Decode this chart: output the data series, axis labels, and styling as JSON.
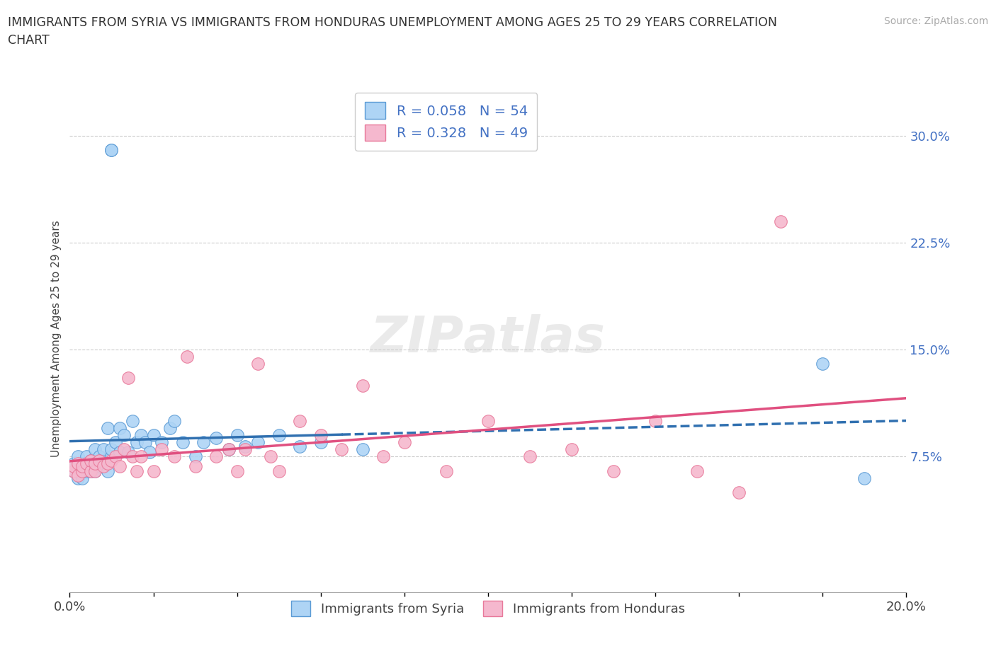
{
  "title_line1": "IMMIGRANTS FROM SYRIA VS IMMIGRANTS FROM HONDURAS UNEMPLOYMENT AMONG AGES 25 TO 29 YEARS CORRELATION",
  "title_line2": "CHART",
  "source": "Source: ZipAtlas.com",
  "ylabel": "Unemployment Among Ages 25 to 29 years",
  "ytick_labels": [
    "7.5%",
    "15.0%",
    "22.5%",
    "30.0%"
  ],
  "ytick_values": [
    0.075,
    0.15,
    0.225,
    0.3
  ],
  "xlim": [
    0.0,
    0.2
  ],
  "ylim": [
    -0.02,
    0.335
  ],
  "legend_labels": [
    "Immigrants from Syria",
    "Immigrants from Honduras"
  ],
  "R_syria": 0.058,
  "N_syria": 54,
  "R_honduras": 0.328,
  "N_honduras": 49,
  "color_syria_fill": "#AED4F5",
  "color_syria_edge": "#5B9BD5",
  "color_honduras_fill": "#F5B8CE",
  "color_honduras_edge": "#E8799A",
  "color_syria_trendline": "#3070B0",
  "color_honduras_trendline": "#E05080",
  "syria_x": [
    0.001,
    0.001,
    0.002,
    0.002,
    0.002,
    0.003,
    0.003,
    0.003,
    0.004,
    0.004,
    0.004,
    0.005,
    0.005,
    0.005,
    0.006,
    0.006,
    0.007,
    0.007,
    0.008,
    0.008,
    0.009,
    0.009,
    0.01,
    0.01,
    0.011,
    0.012,
    0.012,
    0.013,
    0.014,
    0.015,
    0.016,
    0.017,
    0.018,
    0.019,
    0.02,
    0.022,
    0.024,
    0.025,
    0.027,
    0.03,
    0.032,
    0.035,
    0.038,
    0.04,
    0.042,
    0.045,
    0.05,
    0.055,
    0.06,
    0.07,
    0.01,
    0.01,
    0.18,
    0.19
  ],
  "syria_y": [
    0.065,
    0.07,
    0.06,
    0.068,
    0.075,
    0.065,
    0.07,
    0.06,
    0.065,
    0.075,
    0.068,
    0.07,
    0.065,
    0.072,
    0.08,
    0.065,
    0.075,
    0.068,
    0.072,
    0.08,
    0.065,
    0.095,
    0.075,
    0.08,
    0.085,
    0.095,
    0.078,
    0.09,
    0.078,
    0.1,
    0.085,
    0.09,
    0.085,
    0.078,
    0.09,
    0.085,
    0.095,
    0.1,
    0.085,
    0.075,
    0.085,
    0.088,
    0.08,
    0.09,
    0.082,
    0.085,
    0.09,
    0.082,
    0.085,
    0.08,
    0.29,
    0.29,
    0.14,
    0.06
  ],
  "honduras_x": [
    0.001,
    0.001,
    0.002,
    0.002,
    0.003,
    0.003,
    0.004,
    0.005,
    0.005,
    0.006,
    0.006,
    0.007,
    0.008,
    0.009,
    0.01,
    0.011,
    0.012,
    0.013,
    0.014,
    0.015,
    0.016,
    0.017,
    0.02,
    0.022,
    0.025,
    0.028,
    0.03,
    0.035,
    0.038,
    0.04,
    0.042,
    0.045,
    0.048,
    0.05,
    0.055,
    0.06,
    0.065,
    0.07,
    0.075,
    0.08,
    0.09,
    0.1,
    0.11,
    0.12,
    0.13,
    0.14,
    0.15,
    0.16,
    0.17
  ],
  "honduras_y": [
    0.065,
    0.068,
    0.062,
    0.07,
    0.065,
    0.068,
    0.07,
    0.065,
    0.072,
    0.065,
    0.07,
    0.072,
    0.068,
    0.07,
    0.072,
    0.075,
    0.068,
    0.08,
    0.13,
    0.075,
    0.065,
    0.075,
    0.065,
    0.08,
    0.075,
    0.145,
    0.068,
    0.075,
    0.08,
    0.065,
    0.08,
    0.14,
    0.075,
    0.065,
    0.1,
    0.09,
    0.08,
    0.125,
    0.075,
    0.085,
    0.065,
    0.1,
    0.075,
    0.08,
    0.065,
    0.1,
    0.065,
    0.05,
    0.24
  ]
}
